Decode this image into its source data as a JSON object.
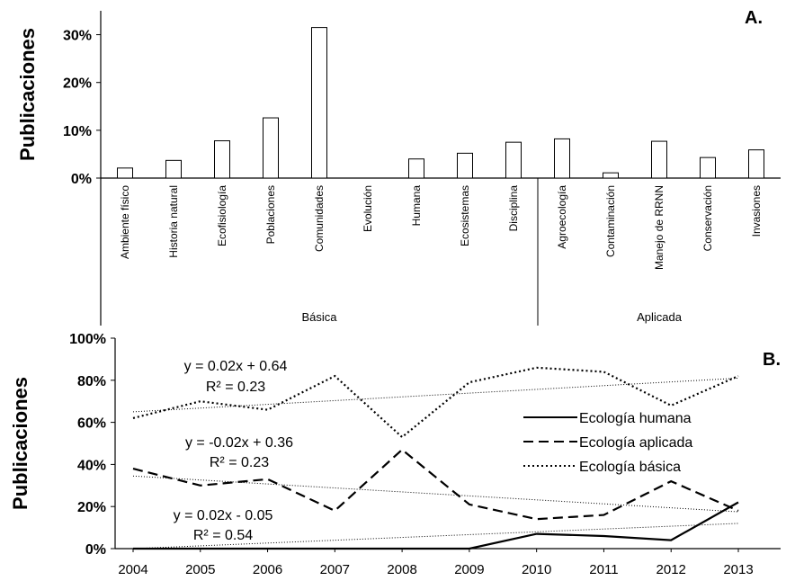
{
  "chart_data": [
    {
      "type": "bar",
      "panel_label": "A.",
      "ylabel": "Publicaciones",
      "ylim": [
        0,
        0.35
      ],
      "yticks": [
        "0%",
        "10%",
        "20%",
        "30%"
      ],
      "categories": [
        "Ambiente físico",
        "Historia natural",
        "Ecofisiología",
        "Poblaciones",
        "Comunidades",
        "Evolución",
        "Humana",
        "Ecosistemas",
        "Disciplina",
        "Agroecología",
        "Contaminación",
        "Manejo de RRNN",
        "Conservación",
        "Invasiones"
      ],
      "values": [
        0.021,
        0.037,
        0.078,
        0.126,
        0.315,
        0.0,
        0.04,
        0.052,
        0.075,
        0.082,
        0.011,
        0.077,
        0.043,
        0.059
      ],
      "groups": [
        {
          "label": "Básica",
          "count": 9
        },
        {
          "label": "Aplicada",
          "count": 5
        }
      ]
    },
    {
      "type": "line",
      "panel_label": "B.",
      "ylabel": "Publicaciones",
      "ylim": [
        0,
        1.0
      ],
      "yticks": [
        "0%",
        "20%",
        "40%",
        "60%",
        "80%",
        "100%"
      ],
      "x": [
        "2004",
        "2005",
        "2006",
        "2007",
        "2008",
        "2009",
        "2010",
        "2011",
        "2012",
        "2013"
      ],
      "legend_position": "right",
      "series": [
        {
          "name": "Ecología humana",
          "style": "solid",
          "values": [
            0.0,
            0.0,
            0.0,
            0.0,
            0.0,
            0.0,
            0.07,
            0.06,
            0.04,
            0.22
          ],
          "trend": {
            "start": 0.0,
            "end": 0.12
          },
          "equation": "y = 0.02x - 0.05",
          "r2": "R² = 0.54"
        },
        {
          "name": "Ecología aplicada",
          "style": "dashed",
          "values": [
            0.38,
            0.3,
            0.33,
            0.18,
            0.47,
            0.21,
            0.14,
            0.16,
            0.32,
            0.18
          ],
          "trend": {
            "start": 0.345,
            "end": 0.175
          },
          "equation": "y = -0.02x + 0.36",
          "r2": "R² = 0.23"
        },
        {
          "name": "Ecología básica",
          "style": "dotted",
          "values": [
            0.62,
            0.7,
            0.66,
            0.82,
            0.53,
            0.79,
            0.86,
            0.84,
            0.68,
            0.82
          ],
          "trend": {
            "start": 0.65,
            "end": 0.81
          },
          "equation": "y = 0.02x + 0.64",
          "r2": "R² = 0.23"
        }
      ]
    }
  ]
}
